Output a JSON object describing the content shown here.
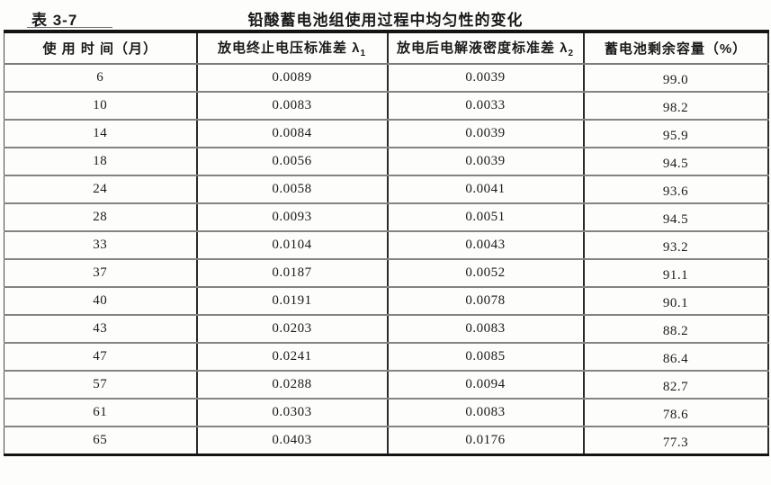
{
  "page": {
    "table_label": "表 3-7",
    "title": "铅酸蓄电池组使用过程中均匀性的变化"
  },
  "table": {
    "columns": [
      {
        "label": "使 用 时 间（月）",
        "sub": ""
      },
      {
        "label": "放电终止电压标准差 λ",
        "sub": "1"
      },
      {
        "label": "放电后电解液密度标准差 λ",
        "sub": "2"
      },
      {
        "label": "蓄电池剩余容量（%）",
        "sub": ""
      }
    ],
    "rows": [
      [
        "6",
        "0.0089",
        "0.0039",
        "99.0"
      ],
      [
        "10",
        "0.0083",
        "0.0033",
        "98.2"
      ],
      [
        "14",
        "0.0084",
        "0.0039",
        "95.9"
      ],
      [
        "18",
        "0.0056",
        "0.0039",
        "94.5"
      ],
      [
        "24",
        "0.0058",
        "0.0041",
        "93.6"
      ],
      [
        "28",
        "0.0093",
        "0.0051",
        "94.5"
      ],
      [
        "33",
        "0.0104",
        "0.0043",
        "93.2"
      ],
      [
        "37",
        "0.0187",
        "0.0052",
        "91.1"
      ],
      [
        "40",
        "0.0191",
        "0.0078",
        "90.1"
      ],
      [
        "43",
        "0.0203",
        "0.0083",
        "88.2"
      ],
      [
        "47",
        "0.0241",
        "0.0085",
        "86.4"
      ],
      [
        "57",
        "0.0288",
        "0.0094",
        "82.7"
      ],
      [
        "61",
        "0.0303",
        "0.0083",
        "78.6"
      ],
      [
        "65",
        "0.0403",
        "0.0176",
        "77.3"
      ]
    ],
    "colors": {
      "paper": "#fdfdfc",
      "ink": "#1a1a1a",
      "rule_black": "#141414",
      "rule_gray": "#7d7d7d"
    }
  }
}
